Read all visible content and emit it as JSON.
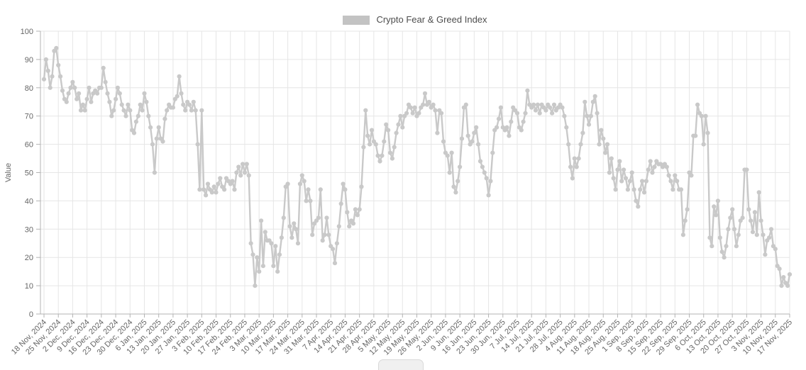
{
  "legend": {
    "label": "Crypto Fear & Greed Index",
    "swatch_color": "#c3c3c3"
  },
  "colors": {
    "grid": "#e6e6e6",
    "axis": "#b3b3b3",
    "tick_text": "#666666",
    "legend_text": "#4d4d4d",
    "line": "#c9c9c9",
    "point": "#c9c9c9",
    "background": "#ffffff"
  },
  "chart_data": {
    "type": "line",
    "title": "Crypto Fear & Greed Index",
    "xlabel": "",
    "ylabel": "Value",
    "ylim": [
      0,
      100
    ],
    "ytick_step": 10,
    "grid": true,
    "legend_position": "top-center",
    "point_frequency": "daily",
    "x_tick_labels": [
      "18 Nov, 2024",
      "25 Nov, 2024",
      "2 Dec, 2024",
      "9 Dec, 2024",
      "16 Dec, 2024",
      "23 Dec, 2024",
      "30 Dec, 2024",
      "6 Jan, 2025",
      "13 Jan, 2025",
      "20 Jan, 2025",
      "27 Jan, 2025",
      "3 Feb, 2025",
      "10 Feb, 2025",
      "17 Feb, 2025",
      "24 Feb, 2025",
      "3 Mar, 2025",
      "10 Mar, 2025",
      "17 Mar, 2025",
      "24 Mar, 2025",
      "31 Mar, 2025",
      "7 Apr, 2025",
      "14 Apr, 2025",
      "21 Apr, 2025",
      "28 Apr, 2025",
      "5 May, 2025",
      "12 May, 2025",
      "19 May, 2025",
      "26 May, 2025",
      "2 Jun, 2025",
      "9 Jun, 2025",
      "16 Jun, 2025",
      "23 Jun, 2025",
      "30 Jun, 2025",
      "7 Jul, 2025",
      "14 Jul, 2025",
      "21 Jul, 2025",
      "28 Jul, 2025",
      "4 Aug, 2025",
      "11 Aug, 2025",
      "18 Aug, 2025",
      "25 Aug, 2025",
      "1 Sep, 2025",
      "8 Sep, 2025",
      "15 Sep, 2025",
      "22 Sep, 2025",
      "29 Sep, 2025",
      "6 Oct, 2025",
      "13 Oct, 2025",
      "20 Oct, 2025",
      "27 Oct, 2025",
      "3 Nov, 2025",
      "10 Nov, 2025",
      "17 Nov, 2025"
    ],
    "series": [
      {
        "name": "Crypto Fear & Greed Index",
        "values": [
          83,
          90,
          86,
          80,
          84,
          93,
          94,
          88,
          84,
          79,
          76,
          75,
          78,
          80,
          82,
          80,
          76,
          78,
          72,
          74,
          72,
          76,
          80,
          75,
          78,
          79,
          78,
          80,
          80,
          87,
          82,
          78,
          75,
          70,
          72,
          76,
          80,
          78,
          74,
          72,
          70,
          74,
          72,
          65,
          64,
          68,
          70,
          74,
          72,
          78,
          75,
          70,
          66,
          60,
          50,
          62,
          66,
          62,
          61,
          69,
          72,
          74,
          73,
          73,
          76,
          77,
          84,
          78,
          74,
          72,
          75,
          74,
          72,
          75,
          72,
          60,
          44,
          72,
          44,
          42,
          46,
          44,
          43,
          45,
          43,
          46,
          48,
          45,
          44,
          48,
          47,
          46,
          47,
          44,
          50,
          52,
          49,
          53,
          50,
          53,
          49,
          25,
          21,
          10,
          20,
          15,
          33,
          17,
          29,
          26,
          26,
          25,
          17,
          24,
          15,
          21,
          27,
          34,
          45,
          46,
          31,
          27,
          32,
          30,
          25,
          46,
          49,
          47,
          40,
          44,
          40,
          28,
          32,
          33,
          34,
          44,
          26,
          28,
          34,
          28,
          24,
          23,
          18,
          25,
          31,
          39,
          46,
          44,
          36,
          31,
          33,
          32,
          37,
          35,
          37,
          45,
          59,
          72,
          63,
          60,
          65,
          61,
          60,
          56,
          54,
          56,
          61,
          67,
          65,
          57,
          55,
          59,
          64,
          67,
          70,
          66,
          70,
          71,
          74,
          73,
          71,
          73,
          70,
          71,
          73,
          74,
          78,
          74,
          75,
          73,
          74,
          72,
          64,
          72,
          71,
          61,
          57,
          56,
          50,
          57,
          45,
          43,
          47,
          52,
          62,
          73,
          74,
          63,
          60,
          61,
          64,
          66,
          60,
          54,
          52,
          50,
          48,
          42,
          47,
          57,
          65,
          66,
          69,
          73,
          66,
          65,
          66,
          63,
          68,
          73,
          72,
          71,
          66,
          65,
          68,
          71,
          79,
          74,
          73,
          74,
          72,
          74,
          71,
          74,
          73,
          72,
          74,
          73,
          71,
          74,
          72,
          73,
          74,
          73,
          70,
          66,
          60,
          52,
          48,
          55,
          52,
          55,
          60,
          64,
          75,
          70,
          67,
          70,
          75,
          77,
          71,
          60,
          65,
          62,
          57,
          60,
          50,
          55,
          48,
          44,
          51,
          54,
          47,
          51,
          48,
          44,
          47,
          50,
          44,
          40,
          38,
          44,
          47,
          43,
          47,
          51,
          54,
          50,
          52,
          54,
          53,
          53,
          52,
          53,
          52,
          49,
          47,
          44,
          49,
          47,
          44,
          44,
          28,
          33,
          37,
          50,
          49,
          63,
          63,
          74,
          71,
          70,
          60,
          70,
          64,
          27,
          24,
          38,
          35,
          40,
          27,
          22,
          20,
          24,
          30,
          34,
          37,
          30,
          24,
          28,
          33,
          34,
          51,
          51,
          37,
          33,
          29,
          36,
          28,
          43,
          33,
          28,
          21,
          26,
          27,
          30,
          24,
          23,
          17,
          16,
          10,
          13,
          11,
          10,
          14
        ]
      }
    ]
  }
}
